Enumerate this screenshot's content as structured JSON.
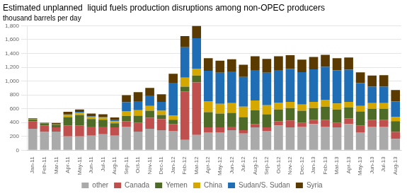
{
  "chart_data": {
    "type": "bar",
    "title": "Estimated unplanned  liquid fuels production disruptions among non-OPEC producers",
    "subtitle": "thousand barrels per day",
    "categories": [
      "Jan-11",
      "Feb-11",
      "Mar-11",
      "Apr-11",
      "May-11",
      "Jun-11",
      "Jul-11",
      "Aug-11",
      "Sep-11",
      "Oct-11",
      "Nov-11",
      "Dec-11",
      "Jan-12",
      "Feb-12",
      "Mar-12",
      "Apr-12",
      "May-12",
      "Jun-12",
      "Jul-12",
      "Aug-12",
      "Sep-12",
      "Oct-12",
      "Nov-12",
      "Dec-12",
      "Jan-13",
      "Feb-13",
      "Mar-13",
      "Apr-13",
      "May-13",
      "Jun-13",
      "Jul-13",
      "Aug-13"
    ],
    "series": [
      {
        "name": "other",
        "color": "#aaaaaa",
        "values": [
          310,
          265,
          270,
          200,
          200,
          210,
          230,
          210,
          340,
          270,
          310,
          290,
          280,
          150,
          220,
          260,
          260,
          290,
          240,
          330,
          280,
          360,
          330,
          340,
          380,
          340,
          330,
          380,
          260,
          340,
          340,
          165
        ]
      },
      {
        "name": "Canada",
        "color": "#c0504d",
        "values": [
          110,
          95,
          60,
          160,
          160,
          130,
          110,
          120,
          80,
          130,
          160,
          160,
          100,
          700,
          760,
          70,
          70,
          50,
          50,
          50,
          50,
          60,
          100,
          60,
          60,
          100,
          70,
          80,
          100,
          100,
          100,
          100
        ]
      },
      {
        "name": "Yemen",
        "color": "#4e6b28",
        "values": [
          25,
          30,
          40,
          120,
          150,
          110,
          100,
          60,
          75,
          100,
          100,
          60,
          60,
          70,
          100,
          220,
          200,
          200,
          190,
          200,
          190,
          170,
          180,
          170,
          170,
          190,
          190,
          160,
          200,
          160,
          160,
          155
        ]
      },
      {
        "name": "China",
        "color": "#d4a800",
        "values": [
          5,
          5,
          5,
          30,
          30,
          30,
          30,
          30,
          70,
          80,
          70,
          60,
          60,
          130,
          100,
          160,
          140,
          140,
          150,
          140,
          130,
          100,
          90,
          90,
          90,
          100,
          85,
          80,
          80,
          80,
          80,
          60
        ]
      },
      {
        "name": "Sudan/S. Sudan",
        "color": "#1f6eb5",
        "values": [
          5,
          0,
          0,
          15,
          15,
          10,
          10,
          15,
          130,
          130,
          150,
          130,
          475,
          440,
          440,
          440,
          450,
          460,
          430,
          440,
          470,
          470,
          475,
          470,
          470,
          475,
          480,
          465,
          330,
          240,
          240,
          225
        ]
      },
      {
        "name": "Syria",
        "color": "#5a3a00",
        "values": [
          10,
          5,
          20,
          30,
          35,
          40,
          40,
          40,
          100,
          130,
          110,
          110,
          130,
          160,
          180,
          180,
          175,
          175,
          175,
          200,
          200,
          200,
          200,
          180,
          180,
          175,
          175,
          175,
          155,
          160,
          165,
          165
        ]
      }
    ],
    "ylim": [
      0,
      1800
    ],
    "yticks": [
      0,
      200,
      400,
      600,
      800,
      {
        "value": 1000,
        "label": "1,000"
      },
      {
        "value": 1200,
        "label": "1,200"
      },
      {
        "value": 1400,
        "label": "1,400"
      },
      {
        "value": 1600,
        "label": "1,600"
      },
      {
        "value": 1800,
        "label": "1,800"
      }
    ],
    "grid": true,
    "stacked": true,
    "legend": "bottom"
  }
}
